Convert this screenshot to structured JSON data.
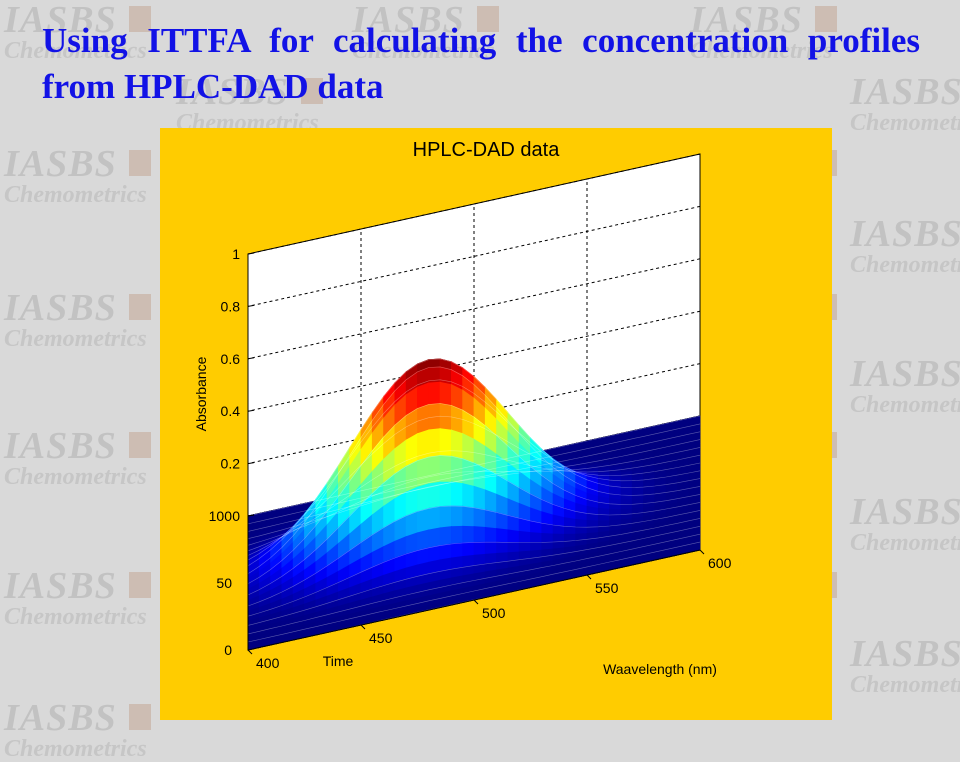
{
  "slide": {
    "title": "Using ITTFA for calculating the concentration profiles from HPLC-DAD data"
  },
  "watermark": {
    "line1": "IASBS",
    "line2": "Chemometrics"
  },
  "colors": {
    "background": "#d9d9d9",
    "title": "#1212e6",
    "figure_background": "#ffcc00",
    "axes_background": "#ffffff",
    "surface_colormap": "jet"
  },
  "chart_data": {
    "type": "surface",
    "title": "HPLC-DAD data",
    "xlabel": "Waavelength (nm)",
    "ylabel": "Time",
    "zlabel": "Absorbance",
    "x_ticks": [
      400,
      450,
      500,
      550,
      600
    ],
    "y_ticks": [
      0,
      50,
      100
    ],
    "z_ticks": [
      0,
      0.2,
      0.4,
      0.6,
      0.8,
      1
    ],
    "xlim": [
      400,
      600
    ],
    "ylim": [
      0,
      100
    ],
    "zlim": [
      0,
      1
    ],
    "grid": true,
    "peak": {
      "wavelength_center": 480,
      "wavelength_width": 35,
      "time_center": 50,
      "time_width": 14,
      "max_absorbance": 0.7
    }
  }
}
